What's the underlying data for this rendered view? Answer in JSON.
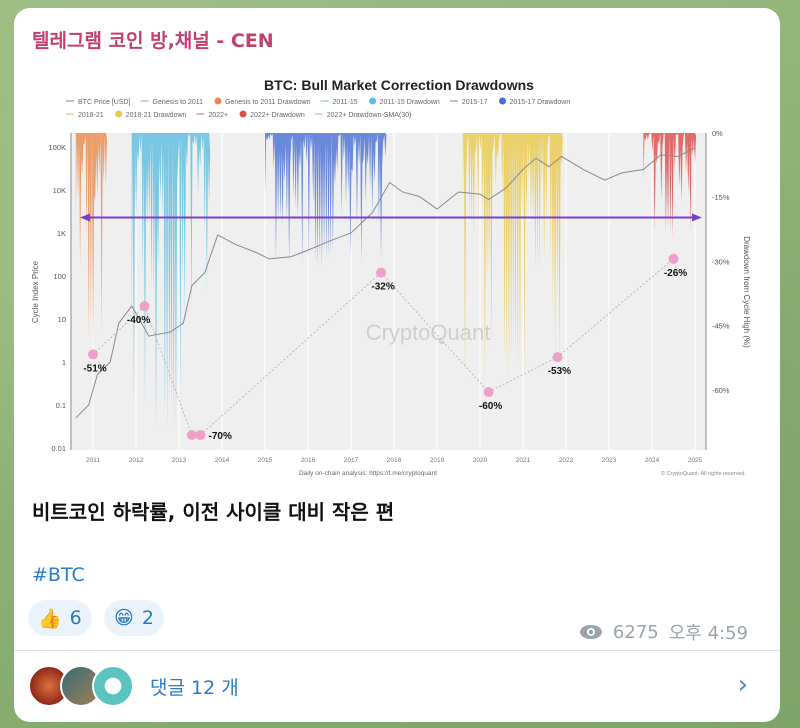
{
  "channel_title": "텔레그램 코인 방,채널 - CEN",
  "message_text": "비트코인 하락률, 이전 사이클 대비 작은 편",
  "hashtag": "#BTC",
  "reactions": [
    {
      "icon": "thumbs-up-icon",
      "emoji": "👍",
      "count": "6"
    },
    {
      "icon": "grin-icon",
      "emoji": "😁",
      "count": "2"
    }
  ],
  "views": "6275",
  "time": "오후 4:59",
  "comments_label": "댓글 12 개",
  "chart_data": {
    "type": "area",
    "title": "BTC: Bull Market Correction Drawdowns",
    "watermark": "CryptoQuant",
    "ylabel_left": "Cycle Index Price",
    "ylabel_right": "Drawdown from Cycle High (%)",
    "y_left_scale": "log",
    "y_left_ticks": [
      "100K",
      "10K",
      "1K",
      "100",
      "10",
      "1",
      "0.1",
      "0.01"
    ],
    "y_right_ticks": [
      "0%",
      "-15%",
      "-30%",
      "-45%",
      "-60%"
    ],
    "x_ticks": [
      "2011",
      "2012",
      "2013",
      "2014",
      "2015",
      "2016",
      "2017",
      "2018",
      "2019",
      "2020",
      "2021",
      "2022",
      "2023",
      "2024",
      "2025"
    ],
    "legend": [
      {
        "name": "BTC Price [USD]",
        "color": "#999999",
        "kind": "line"
      },
      {
        "name": "Genesis to 2011",
        "color": "#d9a57a",
        "kind": "line"
      },
      {
        "name": "Genesis to 2011 Drawdown",
        "color": "#e8894a",
        "kind": "dot"
      },
      {
        "name": "2011-15",
        "color": "#8cc7dc",
        "kind": "line"
      },
      {
        "name": "2011-15 Drawdown",
        "color": "#5bbde0",
        "kind": "dot"
      },
      {
        "name": "2015-17",
        "color": "#8899bb",
        "kind": "line"
      },
      {
        "name": "2015-17 Drawdown",
        "color": "#4a6fd4",
        "kind": "dot"
      },
      {
        "name": "2018-21",
        "color": "#e0c060",
        "kind": "line"
      },
      {
        "name": "2018-21 Drawdown",
        "color": "#e8c94a",
        "kind": "dot"
      },
      {
        "name": "2022+",
        "color": "#d08080",
        "kind": "line"
      },
      {
        "name": "2022+ Drawdown",
        "color": "#dd4a4a",
        "kind": "dot"
      },
      {
        "name": "2022+ Drawdown-SMA(30)",
        "color": "#bbbbdd",
        "kind": "line"
      }
    ],
    "drawdown_bands": [
      {
        "series": "Genesis to 2011 Drawdown",
        "start": 2010.6,
        "end": 2011.3,
        "max_drawdown": -51,
        "color": "#e8894a"
      },
      {
        "series": "2011-15 Drawdown",
        "start": 2011.9,
        "end": 2013.7,
        "max_drawdown": -70,
        "color": "#5bbde0"
      },
      {
        "series": "2015-17 Drawdown",
        "start": 2015.0,
        "end": 2017.8,
        "max_drawdown": -32,
        "color": "#4a6fd4"
      },
      {
        "series": "2018-21 Drawdown",
        "start": 2019.6,
        "end": 2021.9,
        "max_drawdown": -60,
        "color": "#e8c94a"
      },
      {
        "series": "2022+ Drawdown",
        "start": 2023.8,
        "end": 2025.0,
        "max_drawdown": -26,
        "color": "#dd4a4a"
      }
    ],
    "annotations": [
      {
        "label": "-51%",
        "year": 2011.0,
        "price": 1.5
      },
      {
        "label": "-40%",
        "year": 2012.2,
        "price": 20
      },
      {
        "label": "-70%",
        "year": 2013.3,
        "price": 0.02
      },
      {
        "label": "-70%",
        "year": 2013.5,
        "price": 0.02
      },
      {
        "label": "-32%",
        "year": 2017.7,
        "price": 120
      },
      {
        "label": "-60%",
        "year": 2020.2,
        "price": 0.2
      },
      {
        "label": "-53%",
        "year": 2021.8,
        "price": 1.3
      },
      {
        "label": "-26%",
        "year": 2024.5,
        "price": 250
      }
    ],
    "reference_line": {
      "price": 2300,
      "color": "#7a3fd0"
    },
    "price_series": {
      "x": [
        2010.6,
        2010.9,
        2011.1,
        2011.4,
        2011.6,
        2011.9,
        2012.3,
        2012.8,
        2013.1,
        2013.3,
        2013.6,
        2013.9,
        2014.3,
        2014.8,
        2015.1,
        2015.6,
        2016.0,
        2016.5,
        2017.0,
        2017.5,
        2017.9,
        2018.2,
        2018.6,
        2019.0,
        2019.5,
        2020.0,
        2020.2,
        2020.6,
        2021.0,
        2021.3,
        2021.6,
        2021.9,
        2022.4,
        2022.9,
        2023.3,
        2023.8,
        2024.2,
        2024.6,
        2025.0
      ],
      "y": [
        0.05,
        0.1,
        0.5,
        1,
        8,
        20,
        4,
        5,
        8,
        60,
        120,
        900,
        550,
        350,
        250,
        280,
        400,
        650,
        1000,
        3000,
        15000,
        9000,
        7000,
        3600,
        9000,
        8000,
        6000,
        11000,
        30000,
        55000,
        35000,
        60000,
        30000,
        17000,
        25000,
        30000,
        65000,
        60000,
        95000
      ]
    },
    "footer": "Daily on-chain analysis: https://t.me/cryptoquant",
    "copyright": "© CryptoQuant. All rights reserved."
  }
}
